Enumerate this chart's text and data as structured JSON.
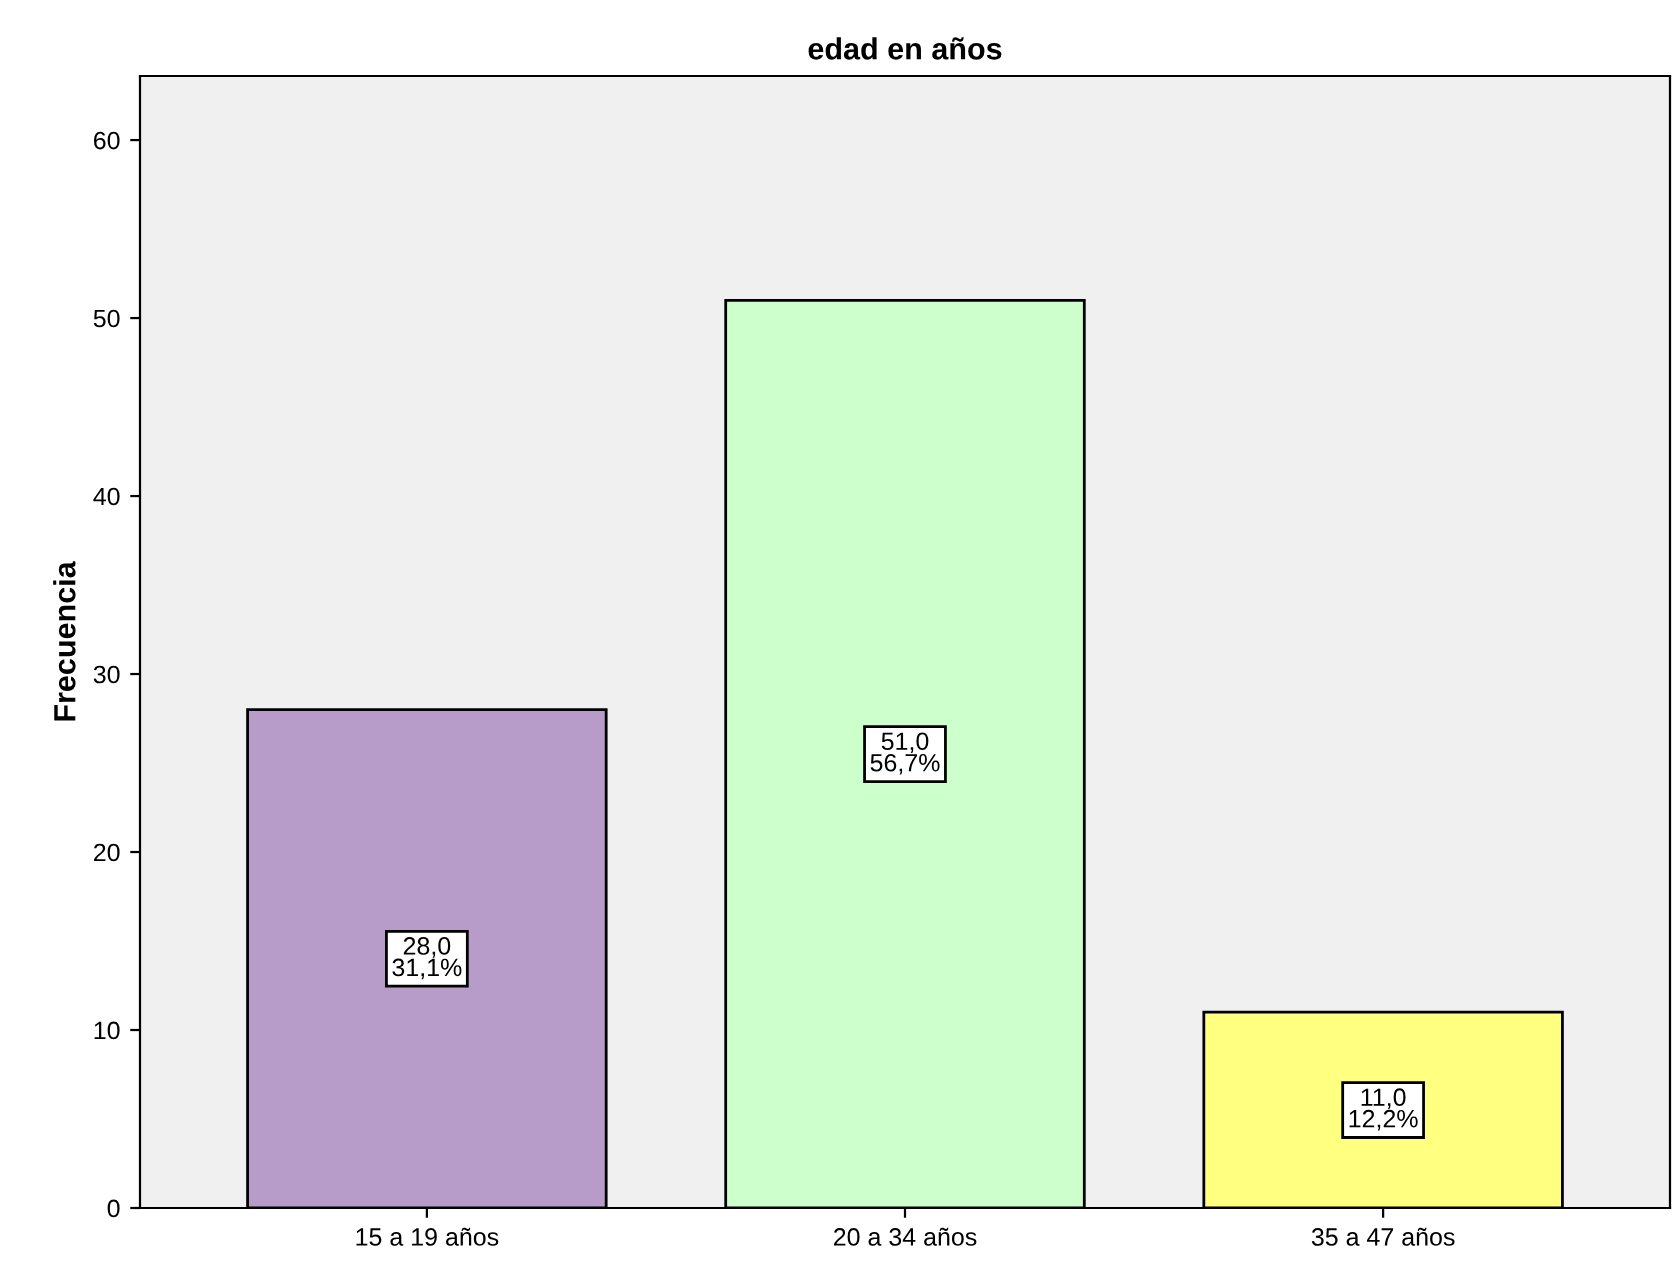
{
  "chart_data": {
    "type": "bar",
    "title": "edad en años",
    "ylabel": "Frecuencia",
    "categories": [
      "15 a 19 años",
      "20 a 34 años",
      "35 a 47 años"
    ],
    "values": [
      28,
      51,
      11
    ],
    "colors": [
      "#b79cc9",
      "#ccffcc",
      "#ffff80"
    ],
    "value_labels": [
      "28,0\n31,1%",
      "51,0\n56,7%",
      "11,0\n12,2%"
    ],
    "ylim": [
      0,
      63.6
    ],
    "yticks": [
      0,
      10,
      20,
      30,
      40,
      50,
      60
    ],
    "grid": false,
    "legend": false
  }
}
